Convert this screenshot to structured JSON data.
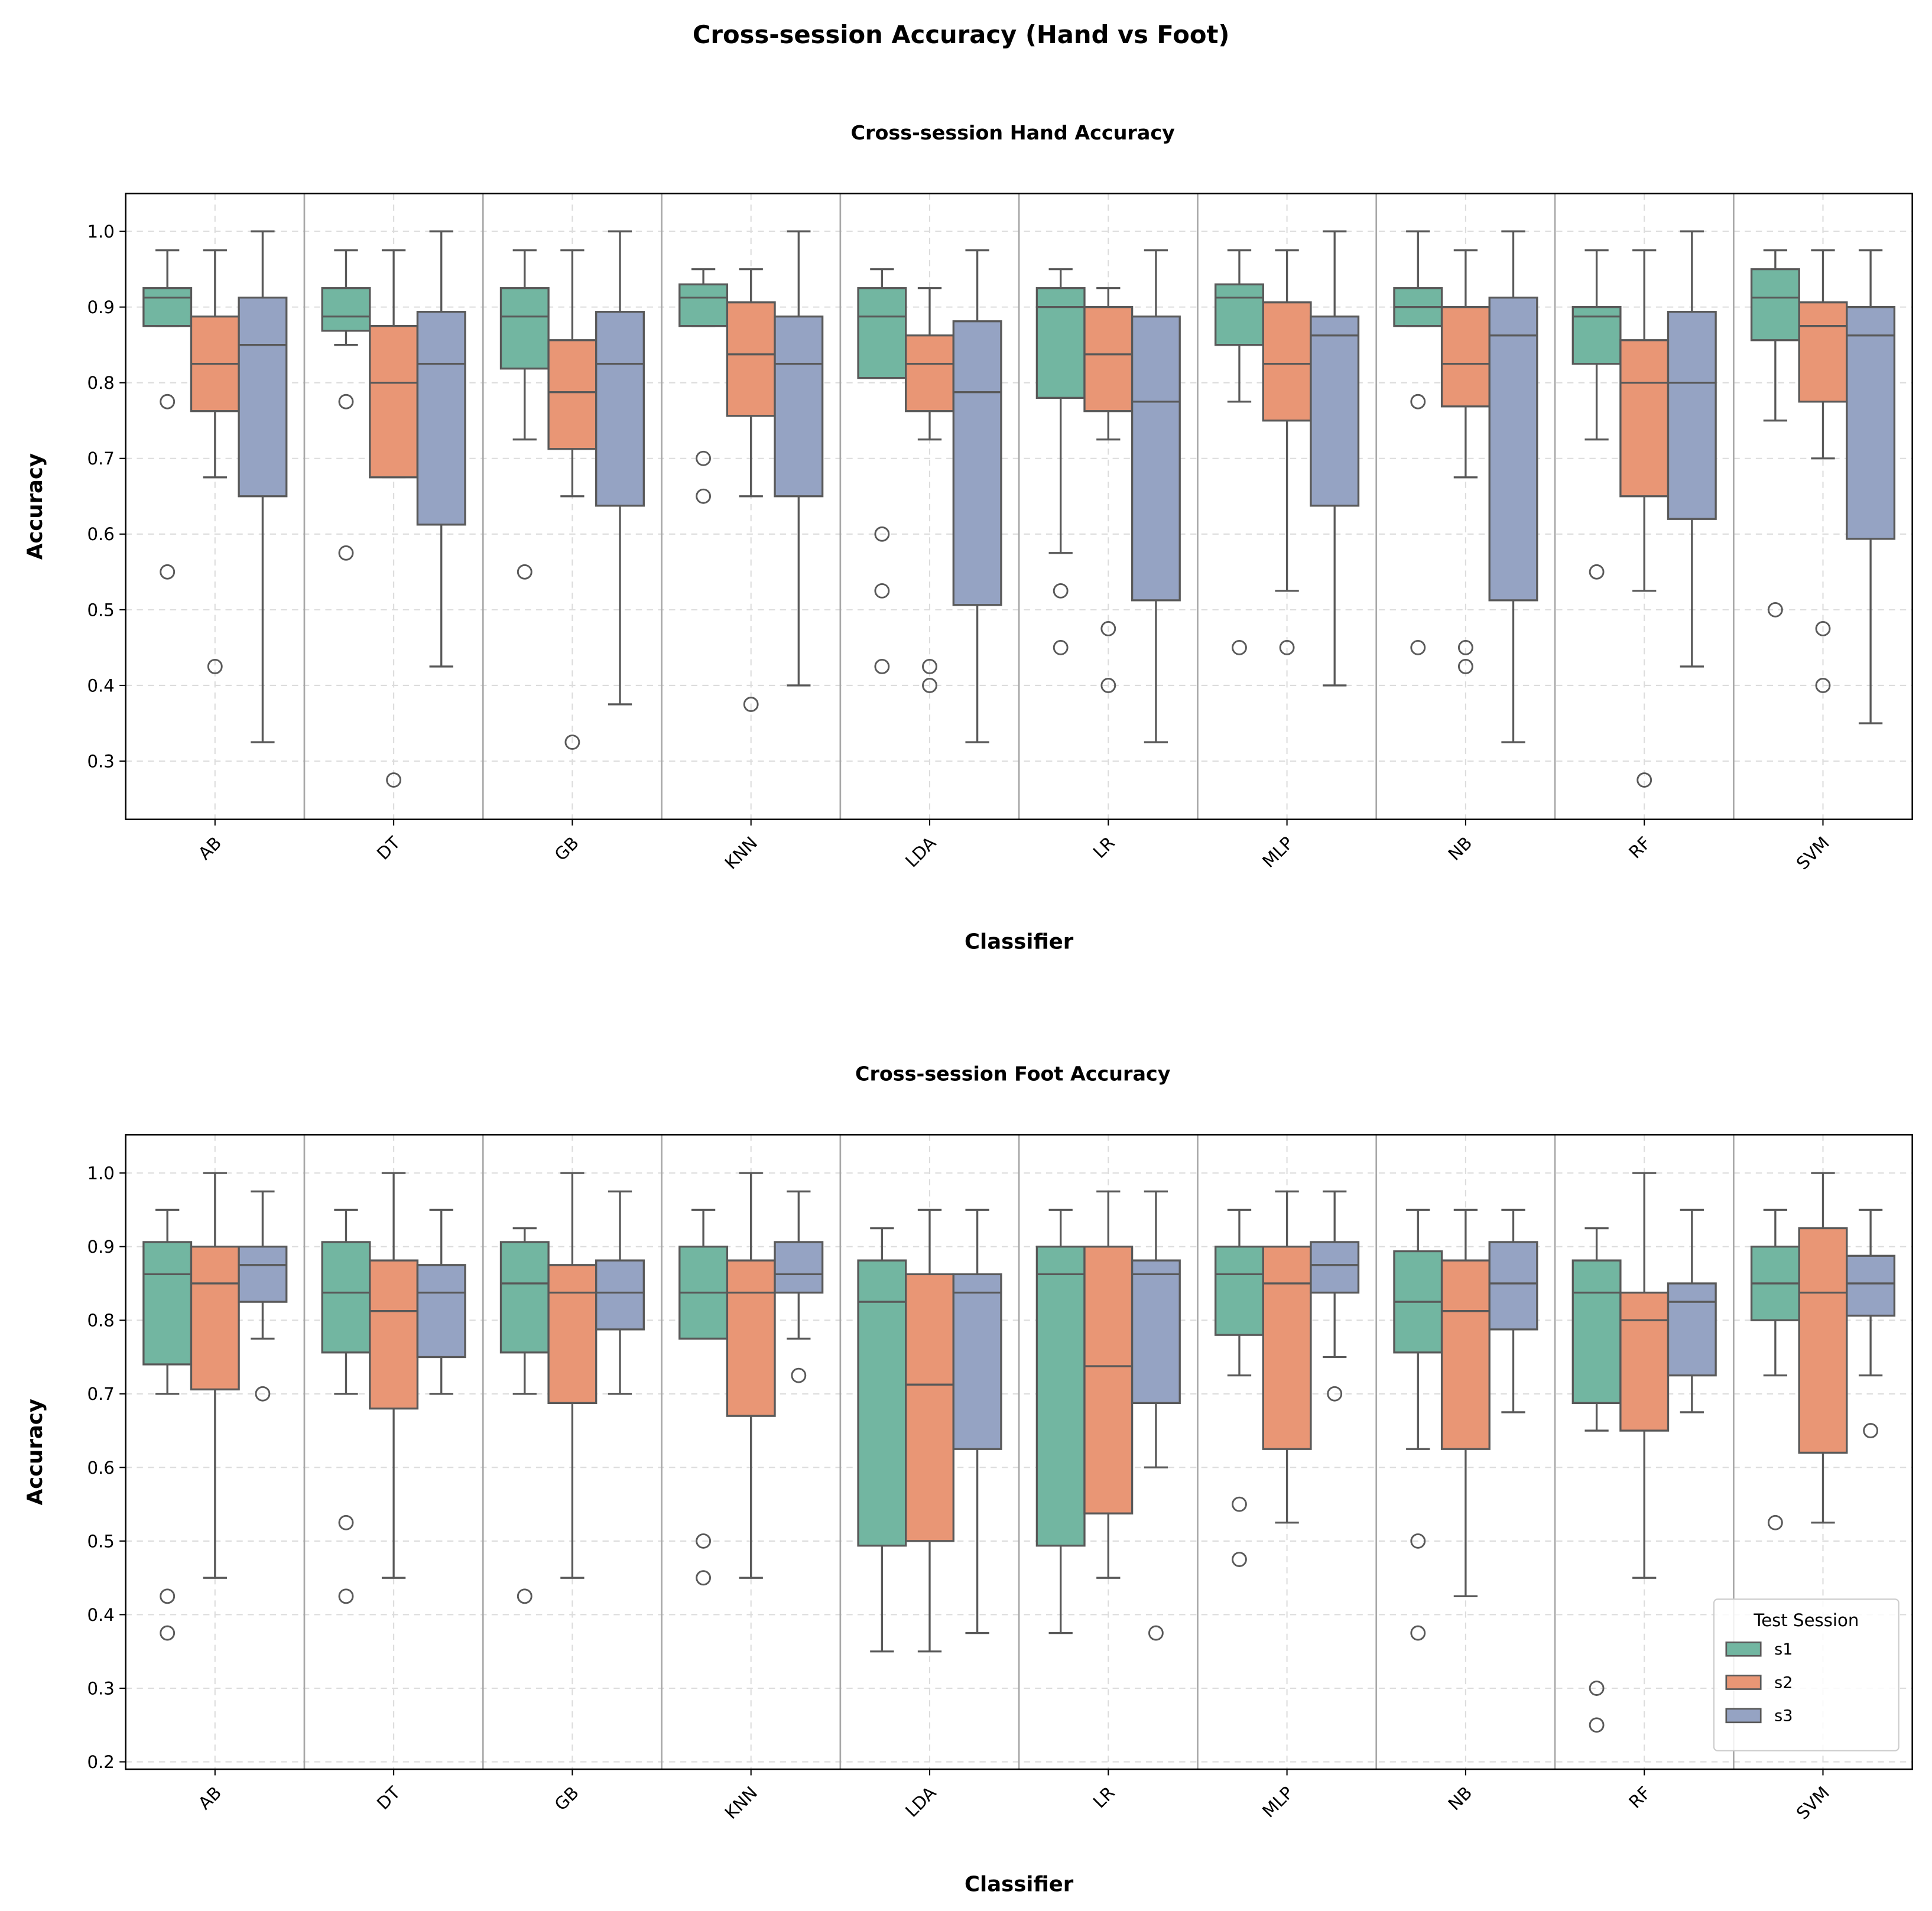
{
  "suptitle": "Cross-session Accuracy (Hand vs Foot)",
  "colors": {
    "s1": "#72b6a1",
    "s2": "#e99675",
    "s3": "#95a3c3",
    "edge": "#595959"
  },
  "chart_data": [
    {
      "type": "box",
      "title": "Cross-session Hand Accuracy",
      "xlabel": "Classifier",
      "ylabel": "Accuracy",
      "ylim": [
        0.223,
        1.05
      ],
      "yticks": [
        "0.3",
        "0.4",
        "0.5",
        "0.6",
        "0.7",
        "0.8",
        "0.9",
        "1.0"
      ],
      "categories": [
        "AB",
        "DT",
        "GB",
        "KNN",
        "LDA",
        "LR",
        "MLP",
        "NB",
        "RF",
        "SVM"
      ],
      "grid": true,
      "series": [
        {
          "name": "s1",
          "boxes": [
            {
              "lo": 0.875,
              "q1": 0.875,
              "med": 0.9125,
              "q3": 0.925,
              "hi": 0.975,
              "out": [
                0.775,
                0.55
              ]
            },
            {
              "lo": 0.85,
              "q1": 0.8687,
              "med": 0.8875,
              "q3": 0.925,
              "hi": 0.975,
              "out": [
                0.775,
                0.575
              ]
            },
            {
              "lo": 0.725,
              "q1": 0.8187,
              "med": 0.8875,
              "q3": 0.925,
              "hi": 0.975,
              "out": [
                0.55
              ]
            },
            {
              "lo": 0.875,
              "q1": 0.875,
              "med": 0.9125,
              "q3": 0.93,
              "hi": 0.95,
              "out": [
                0.7,
                0.65
              ]
            },
            {
              "lo": 0.8063,
              "q1": 0.8063,
              "med": 0.8875,
              "q3": 0.925,
              "hi": 0.95,
              "out": [
                0.6,
                0.525,
                0.425
              ]
            },
            {
              "lo": 0.575,
              "q1": 0.78,
              "med": 0.9,
              "q3": 0.925,
              "hi": 0.95,
              "out": [
                0.525,
                0.45
              ]
            },
            {
              "lo": 0.775,
              "q1": 0.85,
              "med": 0.9125,
              "q3": 0.93,
              "hi": 0.975,
              "out": [
                0.45
              ]
            },
            {
              "lo": 0.875,
              "q1": 0.875,
              "med": 0.9,
              "q3": 0.925,
              "hi": 1.0,
              "out": [
                0.775,
                0.45
              ]
            },
            {
              "lo": 0.725,
              "q1": 0.825,
              "med": 0.8875,
              "q3": 0.9,
              "hi": 0.975,
              "out": [
                0.55
              ]
            },
            {
              "lo": 0.75,
              "q1": 0.8562,
              "med": 0.9125,
              "q3": 0.95,
              "hi": 0.975,
              "out": [
                0.5
              ]
            }
          ]
        },
        {
          "name": "s2",
          "boxes": [
            {
              "lo": 0.675,
              "q1": 0.7625,
              "med": 0.825,
              "q3": 0.8875,
              "hi": 0.975,
              "out": [
                0.425
              ]
            },
            {
              "lo": 0.675,
              "q1": 0.675,
              "med": 0.8,
              "q3": 0.875,
              "hi": 0.975,
              "out": [
                0.275
              ]
            },
            {
              "lo": 0.65,
              "q1": 0.7125,
              "med": 0.7875,
              "q3": 0.8562,
              "hi": 0.975,
              "out": [
                0.325
              ]
            },
            {
              "lo": 0.65,
              "q1": 0.7562,
              "med": 0.8375,
              "q3": 0.9062,
              "hi": 0.95,
              "out": [
                0.375
              ]
            },
            {
              "lo": 0.725,
              "q1": 0.7625,
              "med": 0.825,
              "q3": 0.8625,
              "hi": 0.925,
              "out": [
                0.425,
                0.4
              ]
            },
            {
              "lo": 0.725,
              "q1": 0.7625,
              "med": 0.8375,
              "q3": 0.9,
              "hi": 0.925,
              "out": [
                0.475,
                0.4
              ]
            },
            {
              "lo": 0.525,
              "q1": 0.75,
              "med": 0.825,
              "q3": 0.9062,
              "hi": 0.975,
              "out": [
                0.45
              ]
            },
            {
              "lo": 0.675,
              "q1": 0.7687,
              "med": 0.825,
              "q3": 0.9,
              "hi": 0.975,
              "out": [
                0.45,
                0.425
              ]
            },
            {
              "lo": 0.525,
              "q1": 0.65,
              "med": 0.8,
              "q3": 0.8562,
              "hi": 0.975,
              "out": [
                0.275
              ]
            },
            {
              "lo": 0.7,
              "q1": 0.775,
              "med": 0.875,
              "q3": 0.9062,
              "hi": 0.975,
              "out": [
                0.475,
                0.4
              ]
            }
          ]
        },
        {
          "name": "s3",
          "boxes": [
            {
              "lo": 0.325,
              "q1": 0.65,
              "med": 0.85,
              "q3": 0.9125,
              "hi": 1.0,
              "out": []
            },
            {
              "lo": 0.425,
              "q1": 0.6125,
              "med": 0.825,
              "q3": 0.8937,
              "hi": 1.0,
              "out": []
            },
            {
              "lo": 0.375,
              "q1": 0.6375,
              "med": 0.825,
              "q3": 0.8937,
              "hi": 1.0,
              "out": []
            },
            {
              "lo": 0.4,
              "q1": 0.65,
              "med": 0.825,
              "q3": 0.8875,
              "hi": 1.0,
              "out": []
            },
            {
              "lo": 0.325,
              "q1": 0.5063,
              "med": 0.7875,
              "q3": 0.8812,
              "hi": 0.975,
              "out": []
            },
            {
              "lo": 0.325,
              "q1": 0.5125,
              "med": 0.775,
              "q3": 0.8875,
              "hi": 0.975,
              "out": []
            },
            {
              "lo": 0.4,
              "q1": 0.6375,
              "med": 0.8625,
              "q3": 0.8875,
              "hi": 1.0,
              "out": []
            },
            {
              "lo": 0.325,
              "q1": 0.5125,
              "med": 0.8625,
              "q3": 0.9125,
              "hi": 1.0,
              "out": []
            },
            {
              "lo": 0.425,
              "q1": 0.62,
              "med": 0.8,
              "q3": 0.8937,
              "hi": 1.0,
              "out": []
            },
            {
              "lo": 0.35,
              "q1": 0.5937,
              "med": 0.8625,
              "q3": 0.9,
              "hi": 0.975,
              "out": []
            }
          ]
        }
      ]
    },
    {
      "type": "box",
      "title": "Cross-session Foot Accuracy",
      "xlabel": "Classifier",
      "ylabel": "Accuracy",
      "ylim": [
        0.19,
        1.052
      ],
      "yticks": [
        "0.2",
        "0.3",
        "0.4",
        "0.5",
        "0.6",
        "0.7",
        "0.8",
        "0.9",
        "1.0"
      ],
      "categories": [
        "AB",
        "DT",
        "GB",
        "KNN",
        "LDA",
        "LR",
        "MLP",
        "NB",
        "RF",
        "SVM"
      ],
      "grid": true,
      "legend": {
        "title": "Test Session",
        "entries": [
          "s1",
          "s2",
          "s3"
        ],
        "placement": "lower-right"
      },
      "series": [
        {
          "name": "s1",
          "boxes": [
            {
              "lo": 0.7,
              "q1": 0.74,
              "med": 0.8625,
              "q3": 0.9062,
              "hi": 0.95,
              "out": [
                0.425,
                0.375
              ]
            },
            {
              "lo": 0.7,
              "q1": 0.7562,
              "med": 0.8375,
              "q3": 0.9062,
              "hi": 0.95,
              "out": [
                0.525,
                0.425
              ]
            },
            {
              "lo": 0.7,
              "q1": 0.7562,
              "med": 0.85,
              "q3": 0.9062,
              "hi": 0.925,
              "out": [
                0.425
              ]
            },
            {
              "lo": 0.775,
              "q1": 0.775,
              "med": 0.8375,
              "q3": 0.9,
              "hi": 0.95,
              "out": [
                0.5,
                0.45
              ]
            },
            {
              "lo": 0.35,
              "q1": 0.4937,
              "med": 0.825,
              "q3": 0.8812,
              "hi": 0.925,
              "out": []
            },
            {
              "lo": 0.375,
              "q1": 0.4937,
              "med": 0.8625,
              "q3": 0.9,
              "hi": 0.95,
              "out": []
            },
            {
              "lo": 0.725,
              "q1": 0.78,
              "med": 0.8625,
              "q3": 0.9,
              "hi": 0.95,
              "out": [
                0.55,
                0.475
              ]
            },
            {
              "lo": 0.625,
              "q1": 0.7562,
              "med": 0.825,
              "q3": 0.8937,
              "hi": 0.95,
              "out": [
                0.5,
                0.375
              ]
            },
            {
              "lo": 0.65,
              "q1": 0.6875,
              "med": 0.8375,
              "q3": 0.8812,
              "hi": 0.925,
              "out": [
                0.3,
                0.25
              ]
            },
            {
              "lo": 0.725,
              "q1": 0.8,
              "med": 0.85,
              "q3": 0.9,
              "hi": 0.95,
              "out": [
                0.525
              ]
            }
          ]
        },
        {
          "name": "s2",
          "boxes": [
            {
              "lo": 0.45,
              "q1": 0.706,
              "med": 0.85,
              "q3": 0.9,
              "hi": 1.0,
              "out": []
            },
            {
              "lo": 0.45,
              "q1": 0.68,
              "med": 0.8125,
              "q3": 0.8812,
              "hi": 1.0,
              "out": []
            },
            {
              "lo": 0.45,
              "q1": 0.6875,
              "med": 0.8375,
              "q3": 0.875,
              "hi": 1.0,
              "out": []
            },
            {
              "lo": 0.45,
              "q1": 0.67,
              "med": 0.8375,
              "q3": 0.8812,
              "hi": 1.0,
              "out": []
            },
            {
              "lo": 0.35,
              "q1": 0.5,
              "med": 0.7125,
              "q3": 0.8625,
              "hi": 0.95,
              "out": []
            },
            {
              "lo": 0.45,
              "q1": 0.5375,
              "med": 0.7375,
              "q3": 0.9,
              "hi": 0.975,
              "out": []
            },
            {
              "lo": 0.525,
              "q1": 0.625,
              "med": 0.85,
              "q3": 0.9,
              "hi": 0.975,
              "out": []
            },
            {
              "lo": 0.425,
              "q1": 0.625,
              "med": 0.8125,
              "q3": 0.8812,
              "hi": 0.95,
              "out": []
            },
            {
              "lo": 0.45,
              "q1": 0.65,
              "med": 0.8,
              "q3": 0.8375,
              "hi": 1.0,
              "out": []
            },
            {
              "lo": 0.525,
              "q1": 0.62,
              "med": 0.8375,
              "q3": 0.925,
              "hi": 1.0,
              "out": []
            }
          ]
        },
        {
          "name": "s3",
          "boxes": [
            {
              "lo": 0.775,
              "q1": 0.825,
              "med": 0.875,
              "q3": 0.9,
              "hi": 0.975,
              "out": [
                0.7
              ]
            },
            {
              "lo": 0.7,
              "q1": 0.75,
              "med": 0.8375,
              "q3": 0.875,
              "hi": 0.95,
              "out": []
            },
            {
              "lo": 0.7,
              "q1": 0.7875,
              "med": 0.8375,
              "q3": 0.8812,
              "hi": 0.975,
              "out": []
            },
            {
              "lo": 0.775,
              "q1": 0.8375,
              "med": 0.8625,
              "q3": 0.9062,
              "hi": 0.975,
              "out": [
                0.725
              ]
            },
            {
              "lo": 0.375,
              "q1": 0.625,
              "med": 0.8375,
              "q3": 0.8625,
              "hi": 0.95,
              "out": []
            },
            {
              "lo": 0.6,
              "q1": 0.6875,
              "med": 0.8625,
              "q3": 0.8812,
              "hi": 0.975,
              "out": [
                0.375
              ]
            },
            {
              "lo": 0.75,
              "q1": 0.8375,
              "med": 0.875,
              "q3": 0.9062,
              "hi": 0.975,
              "out": [
                0.7
              ]
            },
            {
              "lo": 0.675,
              "q1": 0.7875,
              "med": 0.85,
              "q3": 0.9062,
              "hi": 0.95,
              "out": []
            },
            {
              "lo": 0.675,
              "q1": 0.725,
              "med": 0.825,
              "q3": 0.85,
              "hi": 0.95,
              "out": []
            },
            {
              "lo": 0.725,
              "q1": 0.8062,
              "med": 0.85,
              "q3": 0.8875,
              "hi": 0.95,
              "out": [
                0.65
              ]
            }
          ]
        }
      ]
    }
  ]
}
